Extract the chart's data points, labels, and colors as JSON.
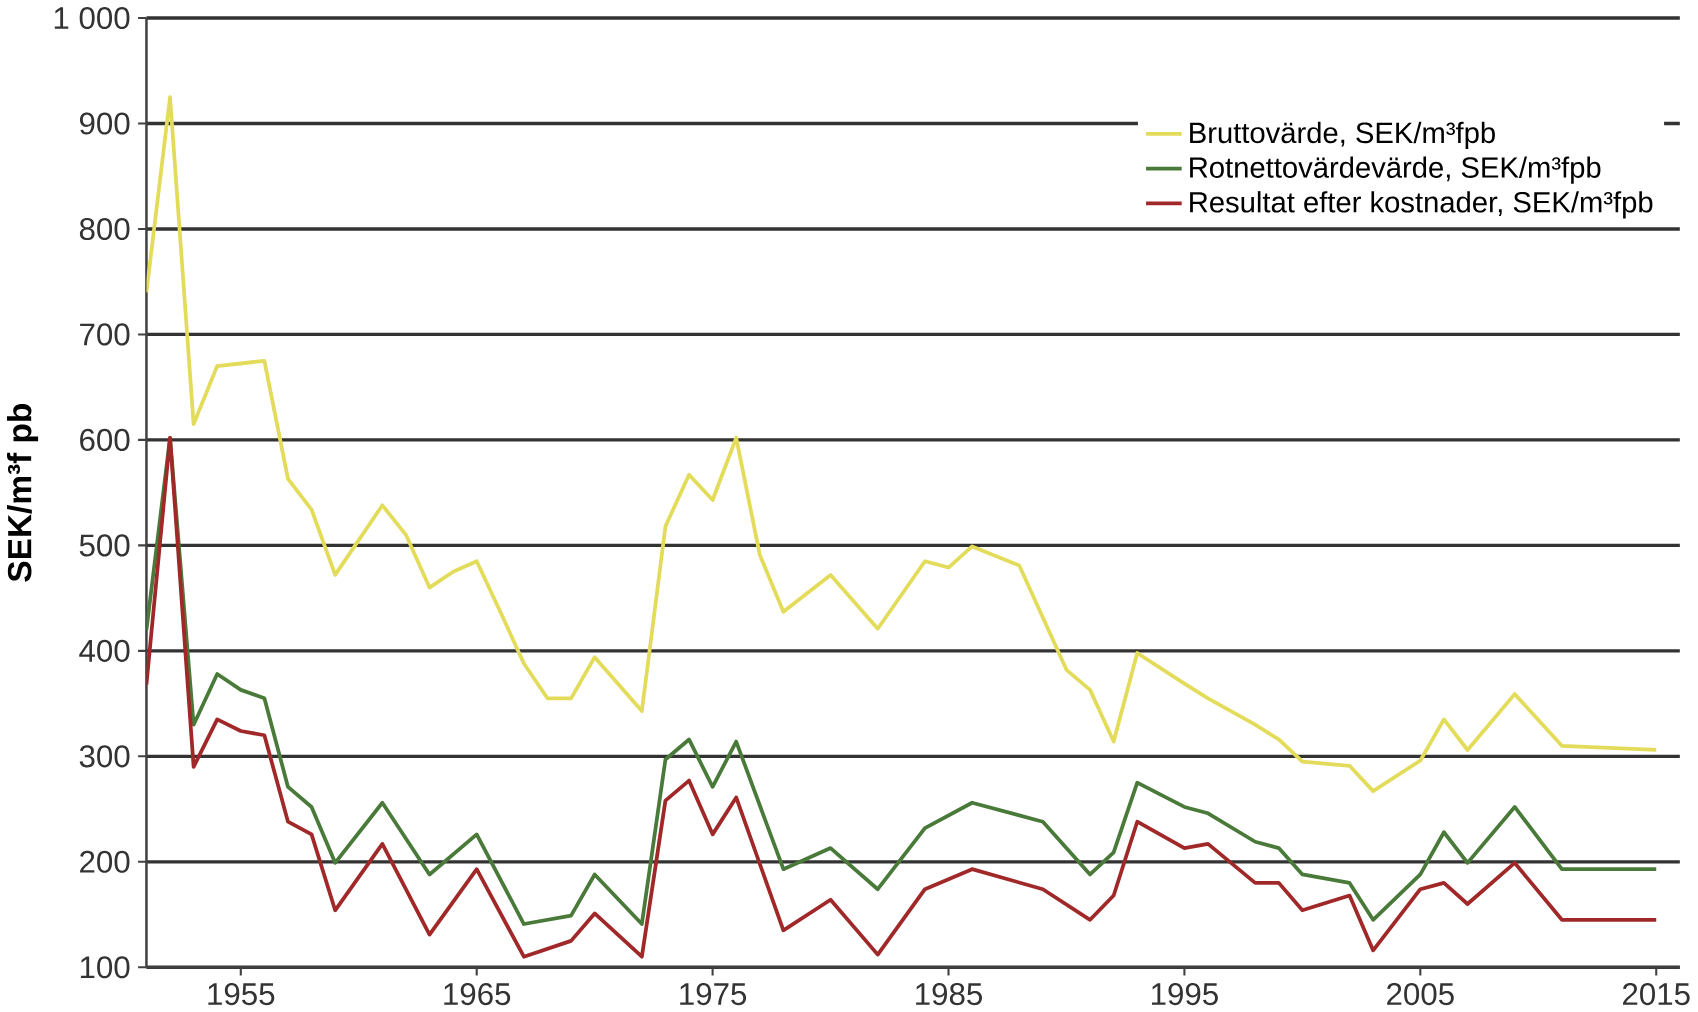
{
  "chart_data": {
    "type": "line",
    "ylabel": "SEK/m³f pb",
    "xlim": [
      1951,
      2016
    ],
    "xticks": [
      1955,
      1965,
      1975,
      1985,
      1995,
      2005,
      2015
    ],
    "ylim": [
      100,
      1000
    ],
    "yticks": [
      100,
      200,
      300,
      400,
      500,
      600,
      700,
      800,
      900,
      {
        "value": 1000,
        "label": "1 000"
      }
    ],
    "grid": "y",
    "legend": "top right",
    "series": [
      {
        "name": "Bruttovärde, SEK/m³fpb",
        "color": "#e3dc5a",
        "x": [
          1951,
          1952,
          1953,
          1954,
          1956,
          1957,
          1958,
          1959,
          1960,
          1961,
          1962,
          1963,
          1964,
          1965,
          1966,
          1967,
          1968,
          1969,
          1970,
          1972,
          1973,
          1974,
          1975,
          1976,
          1977,
          1978,
          1980,
          1982,
          1984,
          1985,
          1986,
          1988,
          1990,
          1991,
          1992,
          1993,
          1995,
          1996,
          1998,
          1999,
          2000,
          2002,
          2003,
          2005,
          2006,
          2007,
          2009,
          2011,
          2015
        ],
        "values": [
          740,
          925,
          615,
          670,
          675,
          563,
          534,
          472,
          505,
          538,
          510,
          460,
          475,
          485,
          437,
          388,
          355,
          355,
          394,
          343,
          518,
          567,
          543,
          602,
          491,
          437,
          472,
          421,
          485,
          479,
          499,
          481,
          382,
          363,
          314,
          398,
          369,
          355,
          330,
          316,
          295,
          291,
          267,
          296,
          335,
          306,
          359,
          310,
          306
        ]
      },
      {
        "name": "Rotnettovärdevärde, SEK/m³fpb",
        "color": "#4a7a3a",
        "x": [
          1951,
          1952,
          1953,
          1954,
          1955,
          1956,
          1957,
          1958,
          1959,
          1961,
          1963,
          1965,
          1967,
          1969,
          1970,
          1972,
          1973,
          1974,
          1975,
          1976,
          1978,
          1980,
          1982,
          1984,
          1986,
          1989,
          1991,
          1992,
          1993,
          1995,
          1996,
          1998,
          1999,
          2000,
          2002,
          2003,
          2005,
          2006,
          2007,
          2009,
          2011,
          2015
        ],
        "values": [
          420,
          602,
          330,
          378,
          363,
          355,
          271,
          252,
          199,
          256,
          188,
          226,
          141,
          149,
          188,
          141,
          297,
          316,
          271,
          314,
          193,
          213,
          174,
          232,
          256,
          238,
          188,
          209,
          275,
          252,
          246,
          219,
          213,
          188,
          180,
          145,
          188,
          228,
          199,
          252,
          193,
          193
        ]
      },
      {
        "name": "Resultat efter kostnader, SEK/m³fpb",
        "color": "#a02828",
        "x": [
          1951,
          1952,
          1953,
          1954,
          1955,
          1956,
          1957,
          1958,
          1959,
          1961,
          1963,
          1965,
          1967,
          1969,
          1970,
          1972,
          1973,
          1974,
          1975,
          1976,
          1978,
          1980,
          1982,
          1984,
          1986,
          1989,
          1991,
          1992,
          1993,
          1995,
          1996,
          1998,
          1999,
          2000,
          2002,
          2003,
          2005,
          2006,
          2007,
          2009,
          2011,
          2015
        ],
        "values": [
          368,
          602,
          290,
          335,
          324,
          320,
          238,
          226,
          154,
          217,
          131,
          193,
          110,
          125,
          151,
          110,
          258,
          277,
          226,
          261,
          135,
          164,
          112,
          174,
          193,
          174,
          145,
          168,
          238,
          213,
          217,
          180,
          180,
          154,
          168,
          116,
          174,
          180,
          160,
          199,
          145,
          145
        ]
      }
    ]
  }
}
